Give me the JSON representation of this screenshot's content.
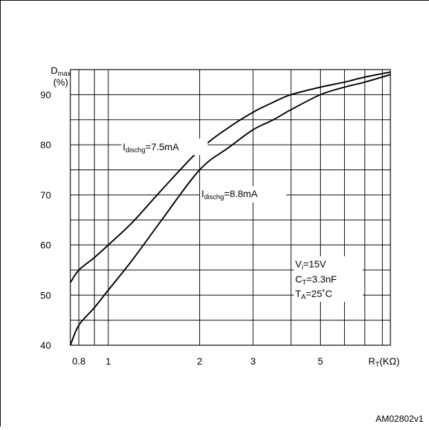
{
  "figure_id": "AM02802v1",
  "chart_data": {
    "type": "line",
    "xscale": "log",
    "xlim": [
      0.75,
      8.5
    ],
    "ylim": [
      40,
      95
    ],
    "grid": true,
    "y_label_main": "D",
    "y_label_sub": "max",
    "y_label_unit": "(%)",
    "x_label_main": "R",
    "x_label_sub": "T",
    "x_label_unit": "(KΩ)",
    "x_ticks": [
      {
        "value": 0.8,
        "label": "0.8"
      },
      {
        "value": 1,
        "label": "1"
      },
      {
        "value": 2,
        "label": "2"
      },
      {
        "value": 3,
        "label": "3"
      },
      {
        "value": 5,
        "label": "5"
      }
    ],
    "y_ticks": [
      {
        "value": 40,
        "label": "40"
      },
      {
        "value": 50,
        "label": "50"
      },
      {
        "value": 60,
        "label": "60"
      },
      {
        "value": 70,
        "label": "70"
      },
      {
        "value": 80,
        "label": "80"
      },
      {
        "value": 90,
        "label": "90"
      }
    ],
    "x_grid": [
      0.8,
      0.9,
      1,
      2,
      3,
      4,
      5,
      6,
      7,
      8
    ],
    "y_grid": [
      45,
      50,
      55,
      60,
      65,
      70,
      75,
      80,
      85,
      90
    ],
    "series": [
      {
        "label_main": "I",
        "label_sub": "dischg",
        "label_rest": "=7.5mA",
        "x": [
          0.75,
          0.8,
          0.9,
          1,
          1.2,
          1.5,
          2,
          2.5,
          3,
          3.5,
          4,
          5,
          6,
          7,
          8.5
        ],
        "y": [
          52.5,
          55,
          57.5,
          60,
          64.5,
          71,
          79,
          83.5,
          86.5,
          88.5,
          90,
          91.5,
          92.5,
          93.5,
          94.5
        ]
      },
      {
        "label_main": "I",
        "label_sub": "dischg",
        "label_rest": "=8.8mA",
        "x": [
          0.75,
          0.8,
          0.9,
          1,
          1.2,
          1.5,
          2,
          2.5,
          3,
          3.5,
          4,
          5,
          6,
          7,
          8.5
        ],
        "y": [
          40,
          44,
          47.5,
          51,
          57,
          65,
          75,
          79.5,
          83,
          85,
          87,
          90,
          91.5,
          92.5,
          94
        ]
      }
    ],
    "annotation": [
      {
        "main": "V",
        "sub": "i",
        "rest": "=15V"
      },
      {
        "main": "C",
        "sub": "T",
        "rest": "=3.3nF"
      },
      {
        "main": "T",
        "sub": "A",
        "rest": "=25˚C"
      }
    ]
  }
}
